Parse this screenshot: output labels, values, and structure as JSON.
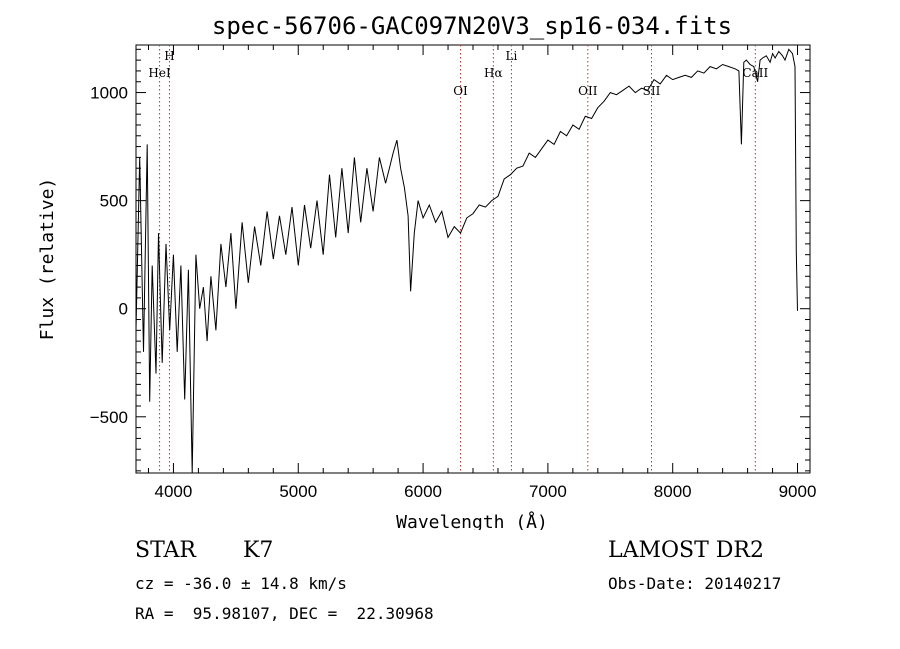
{
  "chart_data": {
    "type": "line",
    "title": "spec-56706-GAC097N20V3_sp16-034.fits",
    "xlabel": "Wavelength (Å)",
    "ylabel": "Flux (relative)",
    "xlim": [
      3700,
      9100
    ],
    "ylim": [
      -760,
      1220
    ],
    "x_ticks": [
      4000,
      5000,
      6000,
      7000,
      8000,
      9000
    ],
    "y_ticks": [
      -500,
      0,
      500,
      1000
    ],
    "grid": false,
    "series": [
      {
        "x": [
          3700,
          3730,
          3760,
          3790,
          3810,
          3830,
          3860,
          3880,
          3910,
          3940,
          3970,
          4000,
          4030,
          4060,
          4090,
          4120,
          4150,
          4180,
          4210,
          4240,
          4270,
          4300,
          4340,
          4380,
          4420,
          4460,
          4500,
          4550,
          4600,
          4650,
          4700,
          4750,
          4800,
          4850,
          4900,
          4950,
          5000,
          5050,
          5100,
          5150,
          5200,
          5250,
          5300,
          5350,
          5400,
          5450,
          5500,
          5550,
          5600,
          5650,
          5700,
          5730,
          5760,
          5790,
          5820,
          5850,
          5880,
          5900,
          5930,
          5960,
          6000,
          6050,
          6100,
          6150,
          6200,
          6250,
          6300,
          6350,
          6400,
          6450,
          6500,
          6550,
          6600,
          6650,
          6700,
          6750,
          6800,
          6850,
          6900,
          6950,
          7000,
          7050,
          7100,
          7150,
          7200,
          7250,
          7300,
          7350,
          7400,
          7450,
          7500,
          7550,
          7600,
          7650,
          7700,
          7750,
          7800,
          7850,
          7900,
          7950,
          8000,
          8050,
          8100,
          8150,
          8200,
          8250,
          8300,
          8350,
          8400,
          8450,
          8500,
          8530,
          8550,
          8570,
          8590,
          8620,
          8650,
          8680,
          8700,
          8720,
          8750,
          8780,
          8800,
          8820,
          8850,
          8880,
          8900,
          8930,
          8960,
          8980,
          8990,
          9000
        ],
        "y": [
          -100,
          700,
          -200,
          760,
          -430,
          200,
          -300,
          350,
          -250,
          300,
          -100,
          250,
          -200,
          200,
          -420,
          180,
          -760,
          250,
          0,
          100,
          -150,
          150,
          -100,
          300,
          100,
          350,
          0,
          400,
          120,
          380,
          200,
          450,
          230,
          430,
          250,
          470,
          200,
          480,
          280,
          500,
          250,
          620,
          330,
          650,
          350,
          700,
          400,
          650,
          450,
          700,
          580,
          650,
          720,
          780,
          650,
          560,
          430,
          80,
          350,
          500,
          420,
          480,
          400,
          450,
          330,
          380,
          350,
          420,
          440,
          480,
          470,
          500,
          520,
          600,
          620,
          650,
          660,
          720,
          700,
          740,
          780,
          760,
          820,
          800,
          850,
          830,
          890,
          880,
          930,
          960,
          1000,
          990,
          1010,
          1030,
          1000,
          1020,
          1010,
          1060,
          1040,
          1080,
          1060,
          1070,
          1080,
          1070,
          1100,
          1090,
          1120,
          1110,
          1130,
          1120,
          1110,
          1100,
          760,
          1140,
          1150,
          1130,
          1120,
          1050,
          1150,
          1160,
          1170,
          1140,
          1180,
          1160,
          1190,
          1170,
          1150,
          1200,
          1180,
          1120,
          260,
          -10
        ]
      }
    ],
    "lines": [
      {
        "label": "HeI",
        "x": 3889
      },
      {
        "label": "H",
        "x": 3968
      },
      {
        "label": "OI",
        "x": 6300
      },
      {
        "label": "Hα",
        "x": 6563
      },
      {
        "label": "Li",
        "x": 6708
      },
      {
        "label": "OII",
        "x": 7320
      },
      {
        "label": "SII",
        "x": 7830
      },
      {
        "label": "CaII",
        "x": 8662
      }
    ]
  },
  "info": {
    "object_type": "STAR",
    "subclass": "K7",
    "survey": "LAMOST DR2",
    "cz": "cz = -36.0 ± 14.8 km/s",
    "obs_date": "Obs-Date: 20140217",
    "coords": "RA =  95.98107, DEC =  22.30968"
  },
  "colors": {
    "line_marker": "#c0392b",
    "spectrum": "#000000"
  }
}
